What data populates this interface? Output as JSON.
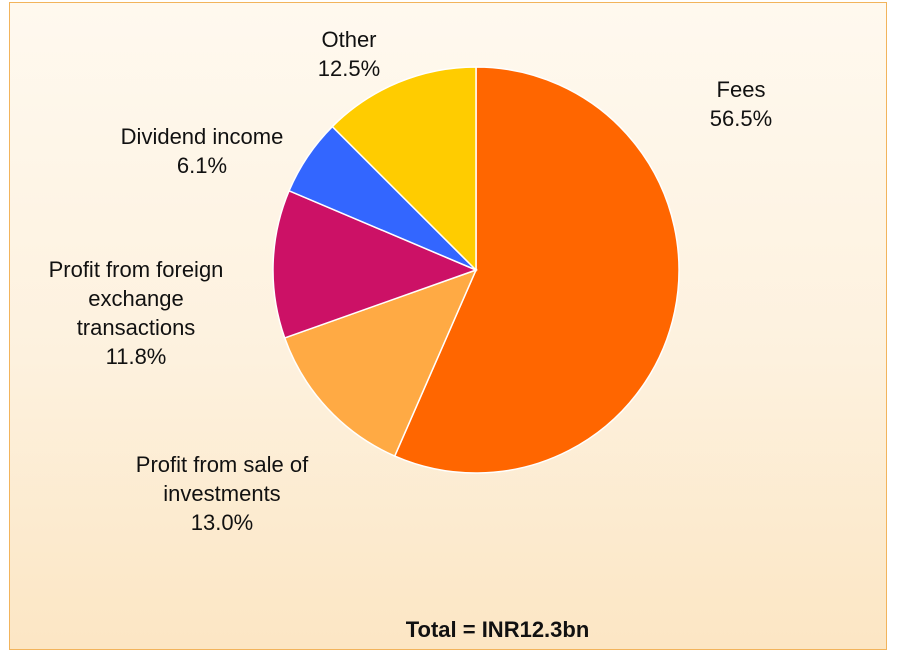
{
  "chart_data": {
    "type": "pie",
    "categories": [
      "Fees",
      "Profit from sale of investments",
      "Profit from foreign exchange transactions",
      "Dividend income",
      "Other"
    ],
    "values": [
      56.5,
      13.0,
      11.8,
      6.1,
      12.5
    ],
    "value_labels": [
      "56.5%",
      "13.0%",
      "11.8%",
      "6.1%",
      "12.5%"
    ],
    "colors": [
      "#ff6600",
      "#ffaa44",
      "#cc1166",
      "#3366ff",
      "#ffcc00"
    ],
    "annotation": "Total = INR12.3bn"
  }
}
